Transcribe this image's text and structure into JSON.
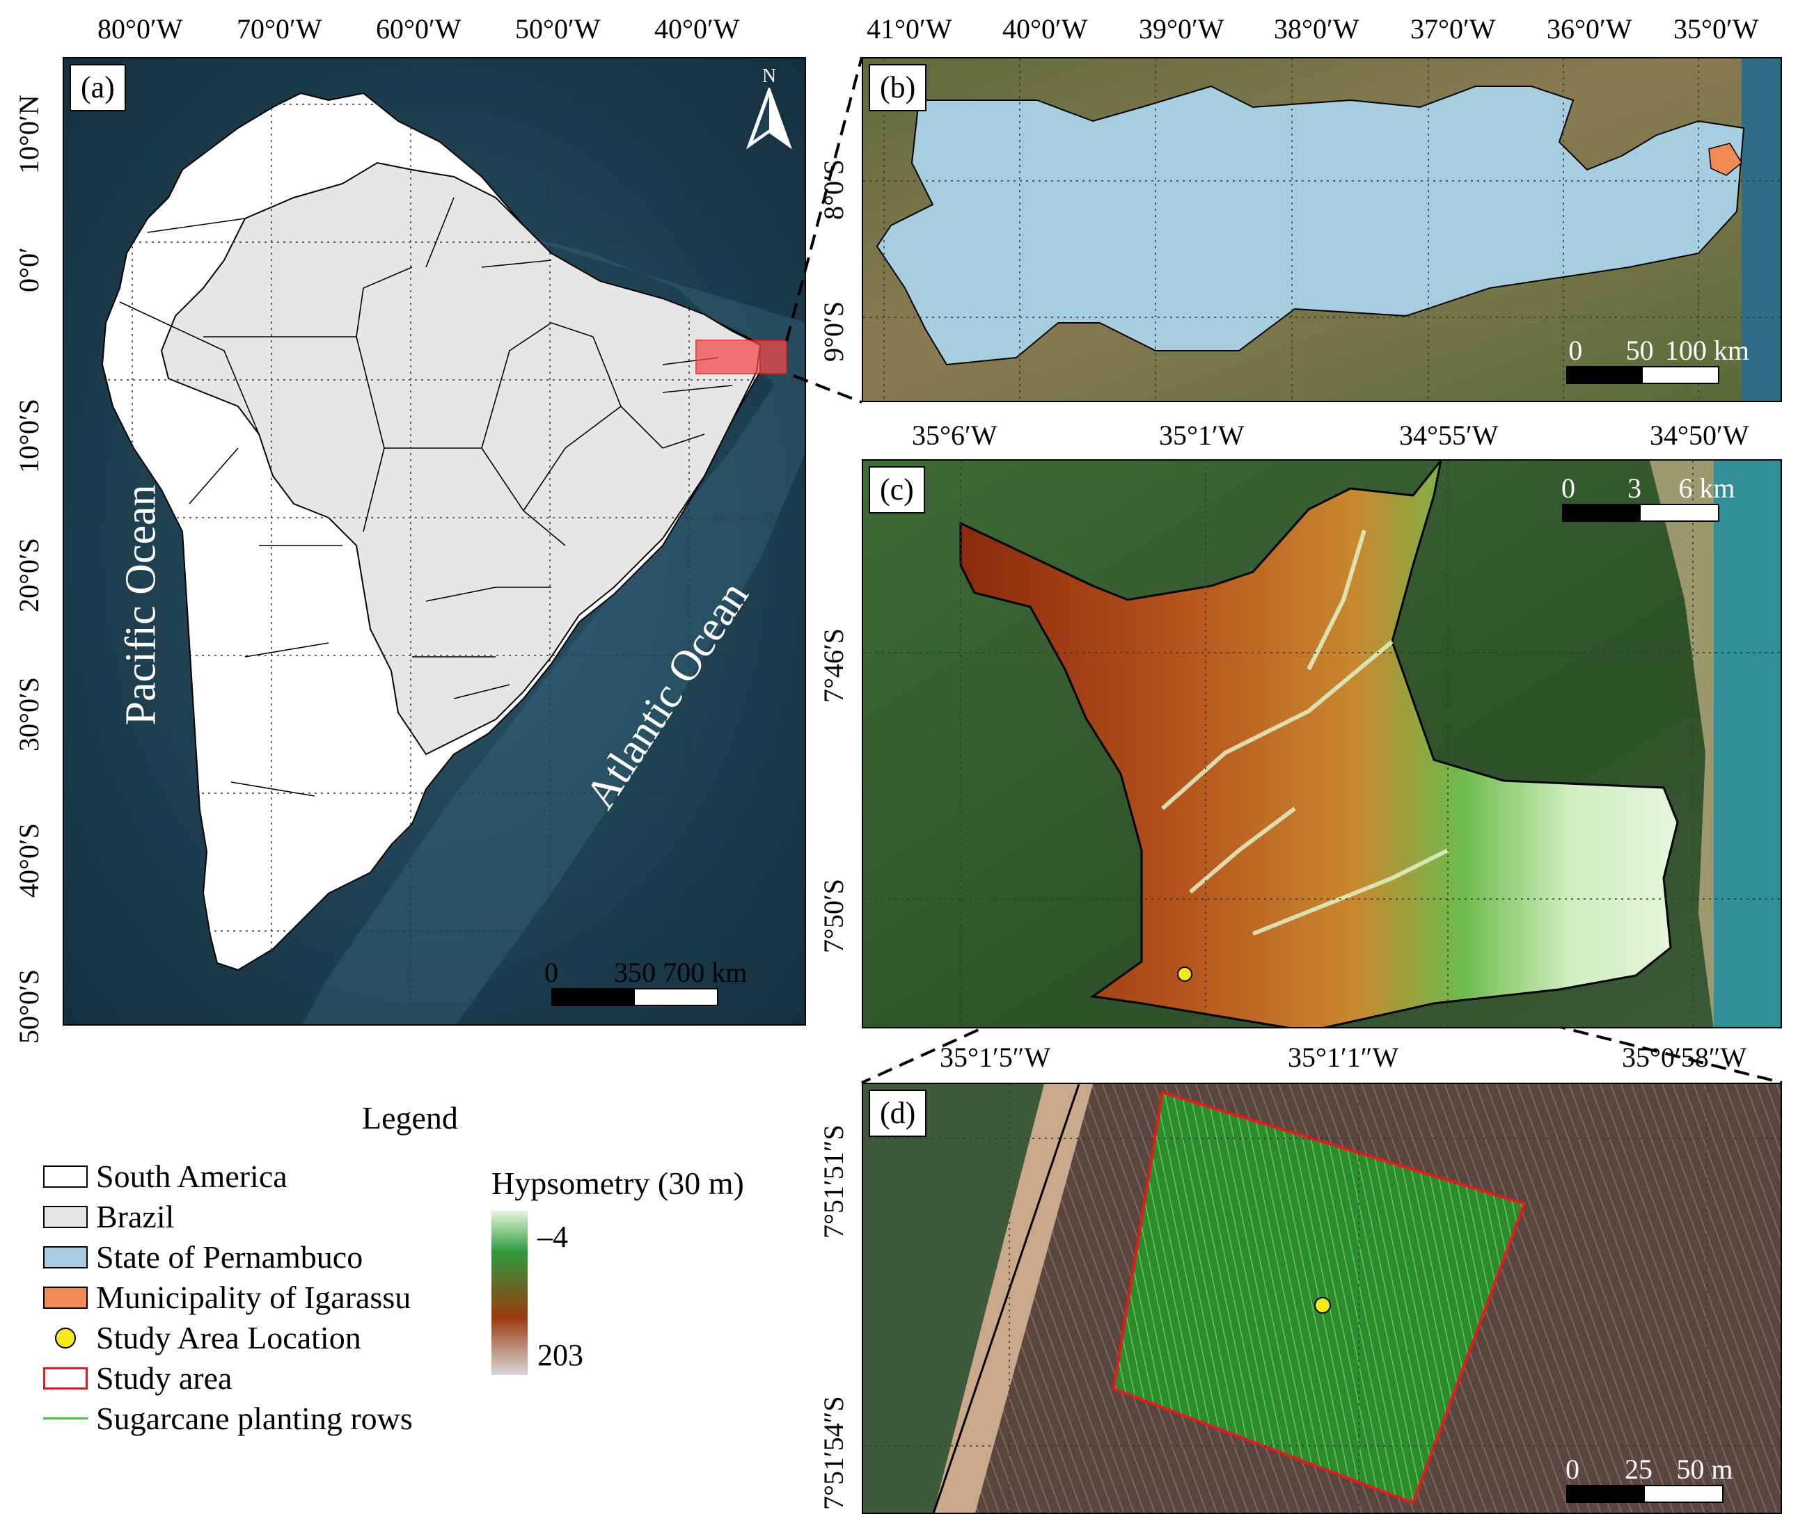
{
  "panels": {
    "a": {
      "label": "(a)",
      "x_ticks": [
        "80°0′W",
        "70°0′W",
        "60°0′W",
        "50°0′W",
        "40°0′W"
      ],
      "y_ticks": [
        "10°0′N",
        "0°0′",
        "10°0′S",
        "20°0′S",
        "30°0′S",
        "40°0′S",
        "50°0′S"
      ],
      "pacific_label": "Pacific Ocean",
      "atlantic_label": "Atlantic Ocean",
      "north_label": "N",
      "scale": {
        "labels": [
          "0",
          "350",
          "700 km"
        ]
      }
    },
    "b": {
      "label": "(b)",
      "x_ticks": [
        "41°0′W",
        "40°0′W",
        "39°0′W",
        "38°0′W",
        "37°0′W",
        "36°0′W",
        "35°0′W"
      ],
      "y_ticks": [
        "8°0′S",
        "9°0′S"
      ],
      "scale": {
        "labels": [
          "0",
          "50",
          "100 km"
        ]
      }
    },
    "c": {
      "label": "(c)",
      "x_ticks": [
        "35°6′W",
        "35°1′W",
        "34°55′W",
        "34°50′W"
      ],
      "y_ticks": [
        "7°46′S",
        "7°50′S"
      ],
      "scale": {
        "labels": [
          "0",
          "3",
          "6 km"
        ]
      }
    },
    "d": {
      "label": "(d)",
      "x_ticks": [
        "35°1′5″W",
        "35°1′1″W",
        "35°0′58″W"
      ],
      "y_ticks": [
        "7°51′51″S",
        "7°51′54″S"
      ],
      "scale": {
        "labels": [
          "0",
          "25",
          "50 m"
        ]
      }
    }
  },
  "legend": {
    "title": "Legend",
    "items": [
      {
        "label": "South America",
        "type": "box",
        "color": "#ffffff"
      },
      {
        "label": "Brazil",
        "type": "box",
        "color": "#e6e6e6"
      },
      {
        "label": "State of Pernambuco",
        "type": "box",
        "color": "#a7cde1"
      },
      {
        "label": "Municipality of Igarassu",
        "type": "box",
        "color": "#f28a55"
      },
      {
        "label": "Study Area Location",
        "type": "dot",
        "color": "#f4ea1a"
      },
      {
        "label": "Study area",
        "type": "outline",
        "color": "#e41a1c"
      },
      {
        "label": "Sugarcane planting rows",
        "type": "line",
        "color": "#33cc33"
      }
    ],
    "hypsometry": {
      "title": "Hypsometry (30 m)",
      "min_label": "–4",
      "max_label": "203",
      "colors": [
        "#e6f6dc",
        "#2e9b3e",
        "#9b3a10",
        "#d8d8d8"
      ]
    }
  }
}
